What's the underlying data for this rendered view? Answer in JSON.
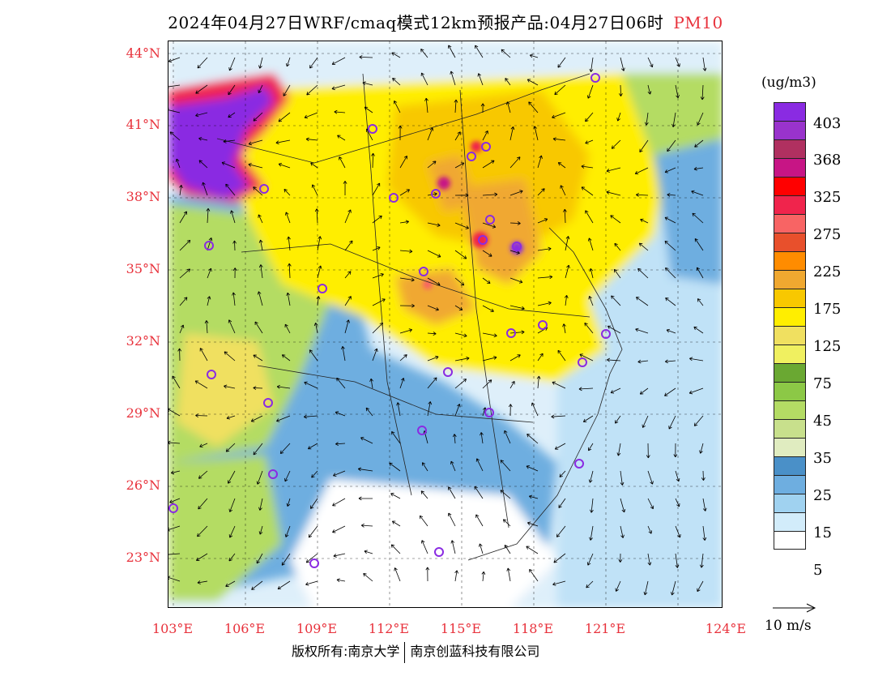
{
  "title": {
    "main": "2024年04月27日WRF/cmaq模式12km预报产品:04月27日06时",
    "pollutant": "PM10"
  },
  "map": {
    "lat_labels": [
      "44°N",
      "41°N",
      "38°N",
      "35°N",
      "32°N",
      "29°N",
      "26°N",
      "23°N"
    ],
    "lon_labels": [
      "103°E",
      "106°E",
      "109°E",
      "112°E",
      "115°E",
      "118°E",
      "121°E",
      "124°E"
    ]
  },
  "legend": {
    "unit": "(ug/m3)",
    "colors": [
      "#8a2be2",
      "#9933cc",
      "#b03060",
      "#c71585",
      "#ff0000",
      "#f0244c",
      "#f86464",
      "#e8502c",
      "#ff8c00",
      "#f0a830",
      "#f8c800",
      "#ffee00",
      "#f0e060",
      "#f0f060",
      "#6aa832",
      "#8cc846",
      "#b4dc64",
      "#c8e08c",
      "#e0ecc0",
      "#4a90c8",
      "#6eaee0",
      "#a0d2f0",
      "#d2ecfa",
      "#ffffff"
    ],
    "tick_labels": [
      "403",
      "368",
      "325",
      "275",
      "225",
      "175",
      "125",
      "75",
      "45",
      "35",
      "25",
      "15",
      "5"
    ]
  },
  "wind_reference": {
    "label": "10 m/s"
  },
  "copyright": {
    "left": "版权所有:南京大学",
    "right": "南京创蓝科技有限公司"
  },
  "stations_color": "#8a2be2"
}
